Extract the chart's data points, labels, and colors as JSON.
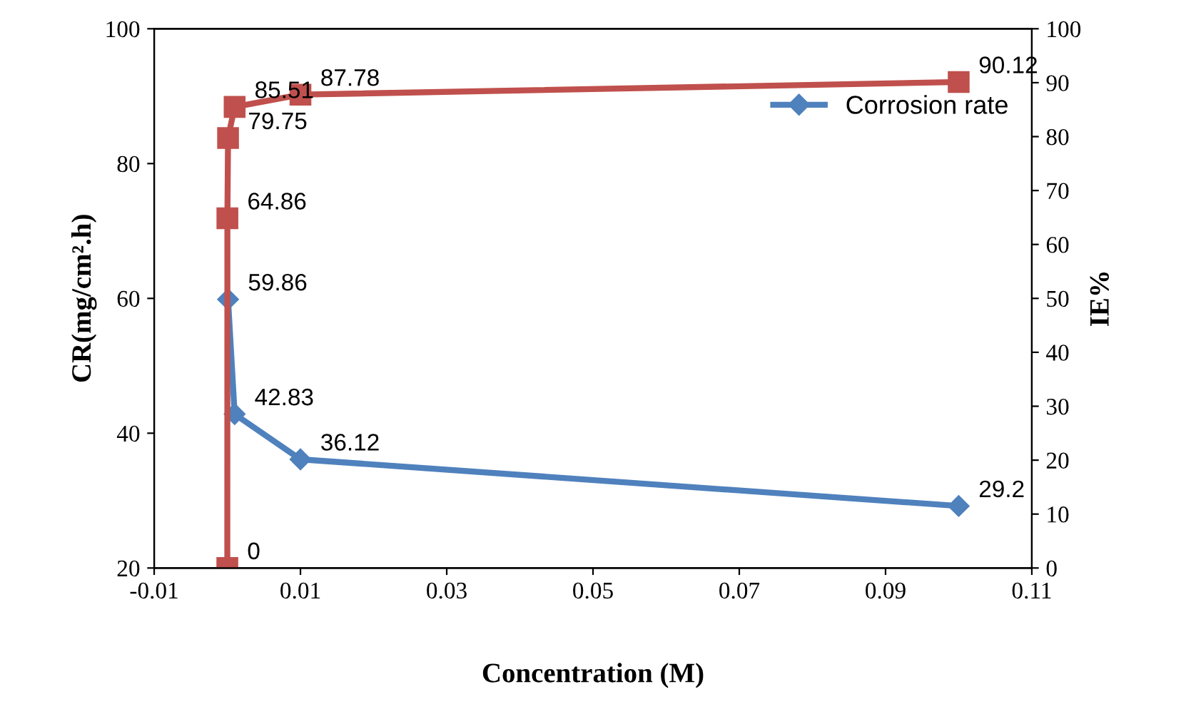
{
  "chart_data": {
    "type": "line",
    "xlabel": "Concentration (M)",
    "ylabel": "CR(mg/cm².h)",
    "y2label": "IE%",
    "x": [
      0,
      1e-05,
      0.0001,
      0.001,
      0.01,
      0.1
    ],
    "series": [
      {
        "name": "Corrosion rate",
        "color": "#4f81bd",
        "marker": "diamond",
        "values": [
          null,
          null,
          59.86,
          42.83,
          36.12,
          29.2
        ]
      },
      {
        "color": "#c0504d",
        "marker": "square",
        "axis": "y2",
        "values": [
          0,
          64.86,
          79.75,
          85.51,
          87.78,
          90.12
        ]
      }
    ],
    "xlim": [
      -0.01,
      0.11
    ],
    "xticks": [
      -0.01,
      0.01,
      0.03,
      0.05,
      0.07,
      0.09,
      0.11
    ],
    "ylim": [
      20,
      100
    ],
    "yticks": [
      20,
      40,
      60,
      80,
      100
    ],
    "y2lim": [
      0,
      100
    ],
    "y2ticks": [
      0,
      10,
      20,
      30,
      40,
      50,
      60,
      70,
      80,
      90,
      100
    ],
    "data_labels": true,
    "legend": "top right",
    "grid": false,
    "line_style": "solid"
  }
}
